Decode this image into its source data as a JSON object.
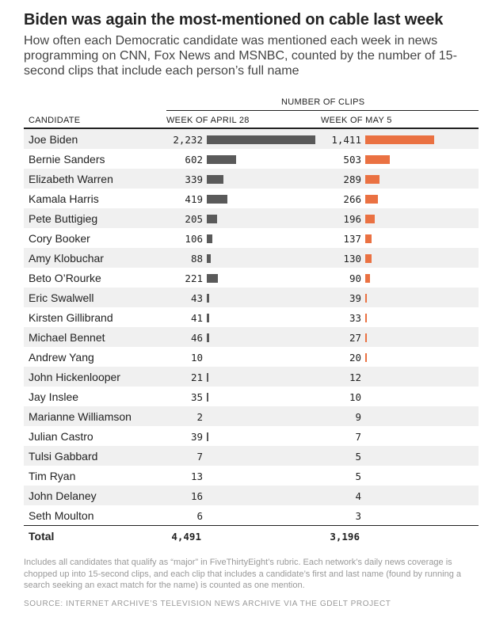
{
  "title": "Biden was again the most-mentioned on cable last week",
  "subtitle": "How often each Democratic candidate was mentioned each week in news programming on CNN, Fox News and MSNBC, counted by the number of 15-second clips that include each person’s full name",
  "chart_data": {
    "type": "bar",
    "group_label": "NUMBER OF CLIPS",
    "category_header": "CANDIDATE",
    "categories": [
      "Joe Biden",
      "Bernie Sanders",
      "Elizabeth Warren",
      "Kamala Harris",
      "Pete Buttigieg",
      "Cory Booker",
      "Amy Klobuchar",
      "Beto O’Rourke",
      "Eric Swalwell",
      "Kirsten Gillibrand",
      "Michael Bennet",
      "Andrew Yang",
      "John Hickenlooper",
      "Jay Inslee",
      "Marianne Williamson",
      "Julian Castro",
      "Tulsi Gabbard",
      "Tim Ryan",
      "John Delaney",
      "Seth Moulton"
    ],
    "series": [
      {
        "name": "WEEK OF APRIL 28",
        "color": "#5a5a5a",
        "values": [
          2232,
          602,
          339,
          419,
          205,
          106,
          88,
          221,
          43,
          41,
          46,
          10,
          21,
          35,
          2,
          39,
          7,
          13,
          16,
          6
        ],
        "labels": [
          "2,232",
          "602",
          "339",
          "419",
          "205",
          "106",
          "88",
          "221",
          "43",
          "41",
          "46",
          "10",
          "21",
          "35",
          "2",
          "39",
          "7",
          "13",
          "16",
          "6"
        ]
      },
      {
        "name": "WEEK OF MAY 5",
        "color": "#ea7142",
        "values": [
          1411,
          503,
          289,
          266,
          196,
          137,
          130,
          90,
          39,
          33,
          27,
          20,
          12,
          10,
          9,
          7,
          5,
          5,
          4,
          3
        ],
        "labels": [
          "1,411",
          "503",
          "289",
          "266",
          "196",
          "137",
          "130",
          "90",
          "39",
          "33",
          "27",
          "20",
          "12",
          "10",
          "9",
          "7",
          "5",
          "5",
          "4",
          "3"
        ]
      }
    ],
    "totals": {
      "label": "Total",
      "values": [
        "4,491",
        "3,196"
      ]
    }
  },
  "footnote": "Includes all candidates that qualify as “major” in FiveThirtyEight’s rubric. Each network’s daily news coverage is chopped up into 15-second clips, and each clip that includes a candidate’s first and last name (found by running a search seeking an exact match for the name) is counted as one mention.",
  "source": "SOURCE: INTERNET ARCHIVE’S TELEVISION NEWS ARCHIVE VIA THE GDELT PROJECT"
}
